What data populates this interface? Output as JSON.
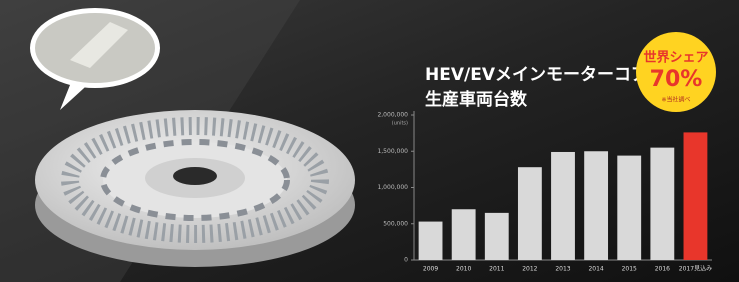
{
  "chart_data": {
    "type": "bar",
    "title": "HEV/EVメインモーターコア",
    "subtitle": "生産車両台数",
    "badge": {
      "heading": "世界シェア",
      "share": "70%",
      "note": "※当社調べ"
    },
    "y_unit": "(units)",
    "categories": [
      "2009",
      "2010",
      "2011",
      "2012",
      "2013",
      "2014",
      "2015",
      "2016",
      "2017見込み"
    ],
    "values": [
      530000,
      700000,
      650000,
      1280000,
      1490000,
      1500000,
      1440000,
      1550000,
      1760000
    ],
    "colors": [
      "#d9d9d9",
      "#d9d9d9",
      "#d9d9d9",
      "#d9d9d9",
      "#d9d9d9",
      "#d9d9d9",
      "#d9d9d9",
      "#d9d9d9",
      "#e8362b"
    ],
    "ylim": [
      0,
      2000000
    ],
    "yticks": [
      0,
      {
        "value": 500000,
        "label": "500,000"
      },
      {
        "value": 1000000,
        "label": "1,000,000"
      },
      {
        "value": 1500000,
        "label": "1,500,000"
      },
      {
        "value": 2000000,
        "label": "2,000,000"
      }
    ],
    "grid": false
  }
}
